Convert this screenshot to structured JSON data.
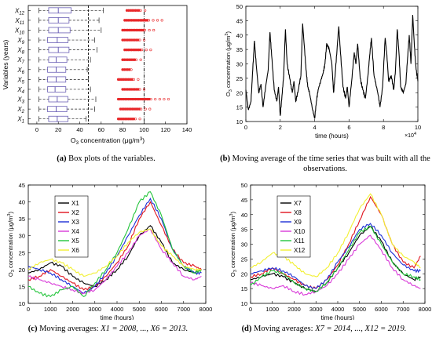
{
  "chart_data": [
    {
      "id": "a",
      "type": "box",
      "categories": [
        "X1",
        "X2",
        "X3",
        "X4",
        "X5",
        "X6",
        "X7",
        "X8",
        "X9",
        "X10",
        "X11",
        "X12"
      ],
      "category_labels": [
        {
          "base": "X",
          "sub": "1"
        },
        {
          "base": "X",
          "sub": "2"
        },
        {
          "base": "X",
          "sub": "3"
        },
        {
          "base": "X",
          "sub": "4"
        },
        {
          "base": "X",
          "sub": "5"
        },
        {
          "base": "X",
          "sub": "6"
        },
        {
          "base": "X",
          "sub": "7"
        },
        {
          "base": "X",
          "sub": "8"
        },
        {
          "base": "X",
          "sub": "9"
        },
        {
          "base": "X",
          "sub": "10"
        },
        {
          "base": "X",
          "sub": "11"
        },
        {
          "base": "X",
          "sub": "12"
        }
      ],
      "boxes": [
        {
          "whislo": 2,
          "q1": 11,
          "med": 19,
          "q3": 29,
          "whishi": 46
        },
        {
          "whislo": 2,
          "q1": 10,
          "med": 18,
          "q3": 28,
          "whishi": 54
        },
        {
          "whislo": 2,
          "q1": 11,
          "med": 19,
          "q3": 29,
          "whishi": 55
        },
        {
          "whislo": 2,
          "q1": 10,
          "med": 17,
          "q3": 27,
          "whishi": 50
        },
        {
          "whislo": 2,
          "q1": 10,
          "med": 18,
          "q3": 27,
          "whishi": 48
        },
        {
          "whislo": 2,
          "q1": 10,
          "med": 18,
          "q3": 27,
          "whishi": 47
        },
        {
          "whislo": 2,
          "q1": 11,
          "med": 18,
          "q3": 28,
          "whishi": 50
        },
        {
          "whislo": 2,
          "q1": 11,
          "med": 20,
          "q3": 30,
          "whishi": 56
        },
        {
          "whislo": 2,
          "q1": 10,
          "med": 19,
          "q3": 29,
          "whishi": 54
        },
        {
          "whislo": 2,
          "q1": 11,
          "med": 20,
          "q3": 31,
          "whishi": 60
        },
        {
          "whislo": 2,
          "q1": 11,
          "med": 20,
          "q3": 30,
          "whishi": 58
        },
        {
          "whislo": 2,
          "q1": 11,
          "med": 20,
          "q3": 32,
          "whishi": 62
        }
      ],
      "outlier_ranges": [
        [
          76,
          100
        ],
        [
          78,
          108
        ],
        [
          76,
          126
        ],
        [
          80,
          104
        ],
        [
          76,
          98
        ],
        [
          80,
          92
        ],
        [
          80,
          100
        ],
        [
          82,
          108
        ],
        [
          80,
          104
        ],
        [
          80,
          112
        ],
        [
          82,
          118
        ],
        [
          84,
          104
        ]
      ],
      "ref_lines": [
        48,
        100
      ],
      "xlim": [
        -8,
        140
      ],
      "xticks": [
        0,
        20,
        40,
        60,
        80,
        100,
        120,
        140
      ],
      "ylabel": "Variables (years)",
      "xlabel": {
        "pre": "O",
        "sub": "3",
        "post": " concentration (μg/m",
        "sup": "3",
        "end": ")"
      },
      "colors": {
        "box": "#6b5fb5",
        "outlier": "#e8282a",
        "ref": "#000000"
      }
    },
    {
      "id": "b",
      "type": "line",
      "x_multiplier_label": {
        "base": "×10",
        "sup": "4"
      },
      "xlim": [
        0,
        100000
      ],
      "ylim": [
        10,
        50
      ],
      "xticks": [
        0,
        2,
        4,
        6,
        8,
        10
      ],
      "yticks": [
        10,
        15,
        20,
        25,
        30,
        35,
        40,
        45,
        50
      ],
      "xlabel": "time (hours)",
      "ylabel": {
        "pre": "O",
        "sub": "3",
        "post": " concentration (μg/m",
        "sup": "3",
        "end": ")"
      },
      "series": [
        {
          "color": "#000000",
          "x": [
            0,
            1500,
            3000,
            4000,
            5000,
            6000,
            7500,
            8800,
            10000,
            11500,
            13000,
            14000,
            15000,
            16500,
            18000,
            19000,
            20000,
            21000,
            22000,
            23000,
            24000,
            25500,
            27000,
            28000,
            29000,
            30500,
            32000,
            33000,
            34000,
            35000,
            36000,
            37000,
            38500,
            40000,
            41000,
            42000,
            43500,
            45000,
            46000,
            47000,
            48500,
            50000,
            51000,
            52000,
            53000,
            54000,
            55000,
            56500,
            58000,
            59000,
            60000,
            61500,
            63000,
            64000,
            65000,
            66500,
            68000,
            69500,
            71000,
            72000,
            73000,
            74500,
            76000,
            77000,
            78000,
            79500,
            81000,
            82000,
            83000,
            84500,
            86000,
            87000,
            88000,
            89000,
            90000,
            91500,
            93000,
            94000,
            95000,
            96000,
            97000,
            98000,
            99000,
            100000
          ],
          "y": [
            21,
            14,
            17,
            28,
            38,
            30,
            20,
            23,
            15,
            22,
            28,
            41,
            33,
            21,
            17,
            22,
            12,
            19,
            26,
            42,
            30,
            25,
            20,
            24,
            17,
            21,
            26,
            44,
            36,
            28,
            22,
            20,
            15,
            11,
            17,
            21,
            24,
            27,
            30,
            37,
            35,
            30,
            20,
            27,
            35,
            43,
            34,
            22,
            18,
            22,
            15,
            24,
            34,
            30,
            37,
            25,
            21,
            18,
            26,
            33,
            39,
            26,
            22,
            19,
            15,
            22,
            39,
            33,
            24,
            26,
            21,
            28,
            42,
            34,
            22,
            20,
            23,
            32,
            40,
            30,
            47,
            36,
            28,
            24
          ]
        }
      ]
    },
    {
      "id": "c",
      "type": "line",
      "xlim": [
        0,
        8000
      ],
      "ylim": [
        10,
        45
      ],
      "xticks": [
        0,
        1000,
        2000,
        3000,
        4000,
        5000,
        6000,
        7000,
        8000
      ],
      "yticks": [
        10,
        15,
        20,
        25,
        30,
        35,
        40,
        45
      ],
      "xlabel": "time (hours)",
      "ylabel": {
        "pre": "O",
        "sub": "3",
        "post": " concentration (μg/m",
        "sup": "3",
        "end": ")"
      },
      "legend": "upper-left-inset",
      "series": [
        {
          "name": "X1",
          "color": "#000000",
          "x": [
            0,
            500,
            1000,
            1500,
            2000,
            2500,
            3000,
            3500,
            4000,
            4500,
            5000,
            5500,
            6000,
            6500,
            7000,
            7500,
            7800
          ],
          "y": [
            19,
            20,
            22,
            21,
            18,
            16,
            15,
            17,
            20,
            24,
            30,
            33,
            28,
            22,
            20,
            19,
            20
          ]
        },
        {
          "name": "X2",
          "color": "#e0141e",
          "x": [
            0,
            500,
            1000,
            1500,
            2000,
            2500,
            3000,
            3500,
            4000,
            4500,
            5000,
            5500,
            6000,
            6500,
            7000,
            7500,
            7800
          ],
          "y": [
            17,
            18,
            20,
            18,
            16,
            14,
            15,
            18,
            22,
            27,
            35,
            40,
            33,
            26,
            22,
            21,
            20
          ]
        },
        {
          "name": "X3",
          "color": "#1d2fd6",
          "x": [
            0,
            500,
            1000,
            1500,
            2000,
            2500,
            3000,
            3500,
            4000,
            4500,
            5000,
            5500,
            6000,
            6500,
            7000,
            7500,
            7800
          ],
          "y": [
            21,
            20,
            19,
            17,
            15,
            13,
            15,
            19,
            24,
            30,
            36,
            41,
            35,
            26,
            21,
            19,
            19
          ]
        },
        {
          "name": "X4",
          "color": "#d838d8",
          "x": [
            0,
            500,
            1000,
            1500,
            2000,
            2500,
            3000,
            3500,
            4000,
            4500,
            5000,
            5500,
            6000,
            6500,
            7000,
            7500,
            7800
          ],
          "y": [
            18,
            17,
            16,
            15,
            14,
            13,
            14,
            17,
            21,
            25,
            30,
            32,
            26,
            22,
            18,
            17,
            18
          ]
        },
        {
          "name": "X5",
          "color": "#22c43a",
          "x": [
            0,
            500,
            1000,
            1500,
            2000,
            2500,
            3000,
            3500,
            4000,
            4500,
            5000,
            5500,
            6000,
            6500,
            7000,
            7500,
            7800
          ],
          "y": [
            15,
            13,
            12,
            14,
            15,
            12,
            16,
            20,
            25,
            32,
            40,
            43,
            36,
            26,
            21,
            19,
            20
          ]
        },
        {
          "name": "X6",
          "color": "#f2f032",
          "x": [
            0,
            500,
            1000,
            1500,
            2000,
            2500,
            3000,
            3500,
            4000,
            4500,
            5000,
            5500,
            6000,
            6500,
            7000,
            7500,
            7800
          ],
          "y": [
            20,
            22,
            23,
            22,
            20,
            18,
            19,
            21,
            24,
            28,
            31,
            32,
            27,
            24,
            21,
            20,
            20
          ]
        }
      ]
    },
    {
      "id": "d",
      "type": "line",
      "xlim": [
        0,
        8000
      ],
      "ylim": [
        10,
        50
      ],
      "xticks": [
        0,
        1000,
        2000,
        3000,
        4000,
        5000,
        6000,
        7000,
        8000
      ],
      "yticks": [
        10,
        15,
        20,
        25,
        30,
        35,
        40,
        45,
        50
      ],
      "xlabel": "time (hours)",
      "ylabel": {
        "pre": "O",
        "sub": "3",
        "post": " concentration (μg/m",
        "sup": "3",
        "end": ")"
      },
      "legend": "upper-left-inset",
      "series": [
        {
          "name": "X7",
          "color": "#000000",
          "x": [
            0,
            500,
            1000,
            1500,
            2000,
            2500,
            3000,
            3500,
            4000,
            4500,
            5000,
            5500,
            6000,
            6500,
            7000,
            7500,
            7800
          ],
          "y": [
            18,
            19,
            20,
            19,
            17,
            15,
            14,
            17,
            22,
            27,
            33,
            36,
            31,
            24,
            20,
            18,
            19
          ]
        },
        {
          "name": "X8",
          "color": "#e0141e",
          "x": [
            0,
            500,
            1000,
            1500,
            2000,
            2500,
            3000,
            3500,
            4000,
            4500,
            5000,
            5500,
            6000,
            6500,
            7000,
            7500,
            7800
          ],
          "y": [
            19,
            20,
            22,
            20,
            18,
            16,
            15,
            18,
            23,
            30,
            38,
            46,
            40,
            30,
            24,
            22,
            26
          ]
        },
        {
          "name": "X9",
          "color": "#1d2fd6",
          "x": [
            0,
            500,
            1000,
            1500,
            2000,
            2500,
            3000,
            3500,
            4000,
            4500,
            5000,
            5500,
            6000,
            6500,
            7000,
            7500,
            7800
          ],
          "y": [
            20,
            21,
            22,
            21,
            19,
            16,
            15,
            18,
            24,
            29,
            35,
            37,
            33,
            27,
            23,
            21,
            21
          ]
        },
        {
          "name": "X10",
          "color": "#d838d8",
          "x": [
            0,
            500,
            1000,
            1500,
            2000,
            2500,
            3000,
            3500,
            4000,
            4500,
            5000,
            5500,
            6000,
            6500,
            7000,
            7500,
            7800
          ],
          "y": [
            17,
            16,
            15,
            16,
            14,
            13,
            14,
            16,
            20,
            25,
            30,
            33,
            28,
            22,
            18,
            16,
            15
          ]
        },
        {
          "name": "X11",
          "color": "#22c43a",
          "x": [
            0,
            500,
            1000,
            1500,
            2000,
            2500,
            3000,
            3500,
            4000,
            4500,
            5000,
            5500,
            6000,
            6500,
            7000,
            7500,
            7800
          ],
          "y": [
            16,
            19,
            21,
            20,
            17,
            15,
            14,
            17,
            22,
            28,
            34,
            36,
            30,
            24,
            20,
            19,
            18
          ]
        },
        {
          "name": "X12",
          "color": "#f2f032",
          "x": [
            0,
            500,
            1000,
            1500,
            2000,
            2500,
            3000,
            3500,
            4000,
            4500,
            5000,
            5500,
            6000,
            6500,
            7000,
            7500,
            7800
          ],
          "y": [
            22,
            24,
            27,
            26,
            23,
            20,
            19,
            22,
            27,
            34,
            42,
            47,
            40,
            30,
            26,
            24,
            22
          ]
        }
      ]
    }
  ],
  "captions": {
    "a": {
      "label": "(a)",
      "text": "Box plots of the variables."
    },
    "b": {
      "label": "(b)",
      "text": "Moving average of the time series that was built with all the observations."
    },
    "c": {
      "label": "(c)",
      "text": "Moving averages: ",
      "math": "X1 = 2008, ..., X6 = 2013."
    },
    "d": {
      "label": "(d)",
      "text": "Moving averages: ",
      "math": "X7 = 2014, ..., X12 = 2019."
    }
  }
}
